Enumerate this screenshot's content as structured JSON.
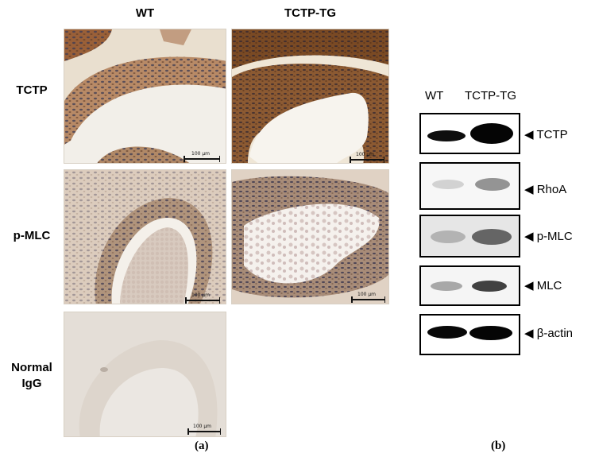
{
  "panel_a": {
    "columns": [
      "WT",
      "TCTP-TG"
    ],
    "rows": [
      {
        "label_lines": [
          "TCTP"
        ]
      },
      {
        "label_lines": [
          "p-MLC"
        ]
      },
      {
        "label_lines": [
          "Normal",
          "IgG"
        ]
      }
    ],
    "scale_bar": "100 μm",
    "caption": "a"
  },
  "panel_b": {
    "lanes": [
      "WT",
      "TCTP-TG"
    ],
    "bands": [
      "TCTP",
      "RhoA",
      "p-MLC",
      "MLC",
      "β-actin"
    ],
    "marker": "◀",
    "caption": "b"
  },
  "colors": {
    "tissue_brown": "#8a5a36",
    "nuclei": "#3c3a52",
    "background_tissue": "#ece4d6",
    "igg_background": "#e6e0d8"
  }
}
